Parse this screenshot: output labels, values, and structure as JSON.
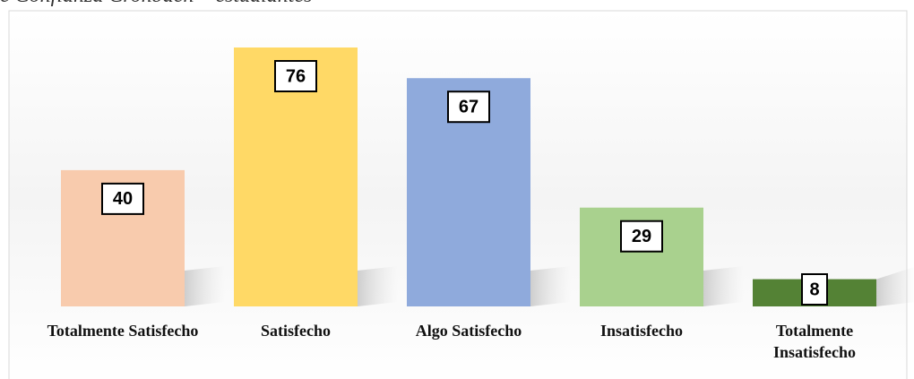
{
  "chart_data": {
    "type": "bar",
    "title": "e Confianza Cronbach – estudiantes",
    "categories": [
      "Totalmente Satisfecho",
      "Satisfecho",
      "Algo Satisfecho",
      "Insatisfecho",
      "Totalmente Insatisfecho"
    ],
    "values": [
      40,
      76,
      67,
      29,
      8
    ],
    "colors": [
      "#f8cbad",
      "#ffd966",
      "#8faadc",
      "#a9d18e",
      "#548235"
    ]
  }
}
